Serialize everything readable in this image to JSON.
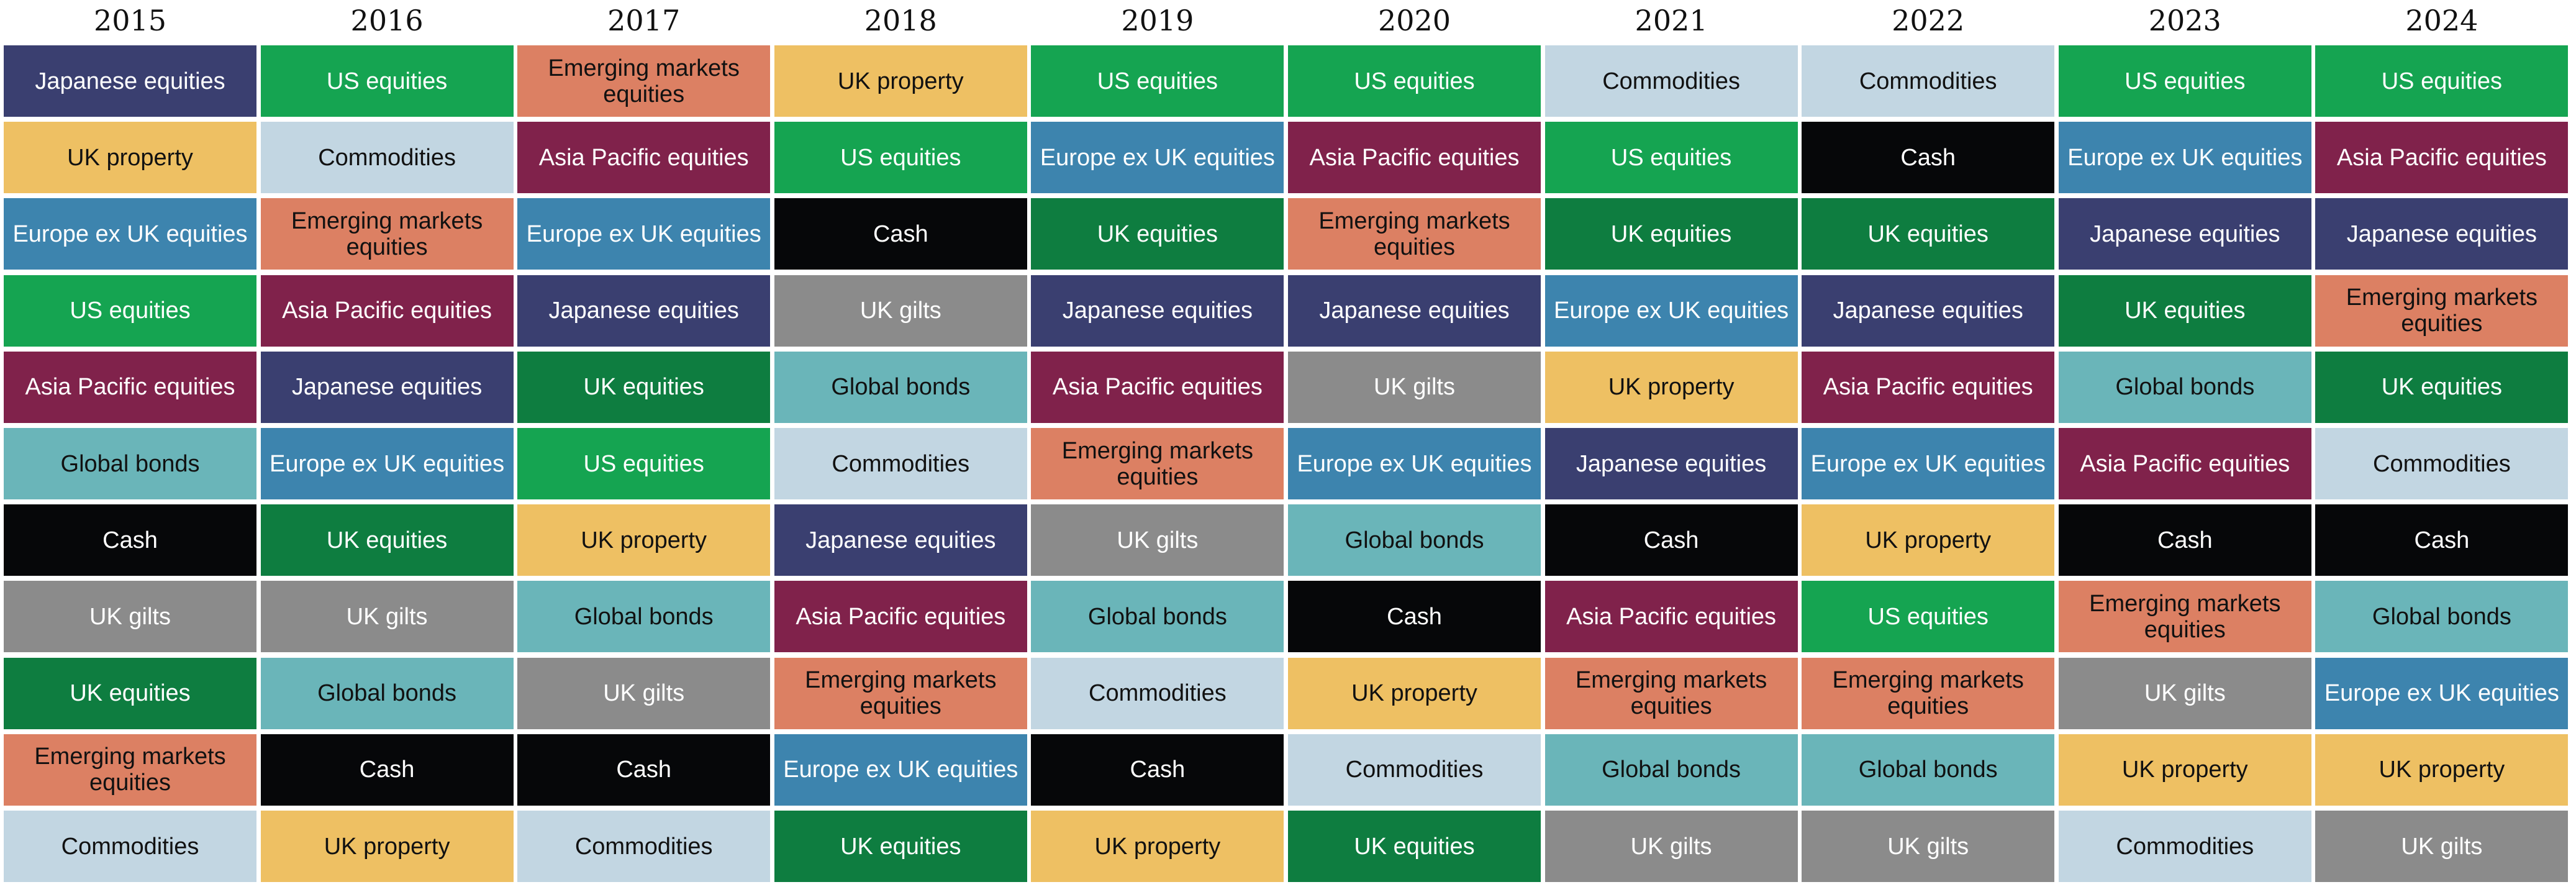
{
  "chart_data": {
    "type": "table",
    "title": "",
    "columns": [
      "2015",
      "2016",
      "2017",
      "2018",
      "2019",
      "2020",
      "2021",
      "2022",
      "2023",
      "2024"
    ],
    "rankings": [
      [
        "Japanese equities",
        "UK property",
        "Europe ex UK equities",
        "US equities",
        "Asia Pacific equities",
        "Global bonds",
        "Cash",
        "UK gilts",
        "UK equities",
        "Emerging markets equities",
        "Commodities"
      ],
      [
        "US equities",
        "Commodities",
        "Emerging markets equities",
        "Asia Pacific equities",
        "Japanese equities",
        "Europe ex UK equities",
        "UK equities",
        "UK gilts",
        "Global bonds",
        "Cash",
        "UK property"
      ],
      [
        "Emerging markets equities",
        "Asia Pacific equities",
        "Europe ex UK equities",
        "Japanese equities",
        "UK equities",
        "US equities",
        "UK property",
        "Global bonds",
        "UK gilts",
        "Cash",
        "Commodities"
      ],
      [
        "UK property",
        "US equities",
        "Cash",
        "UK gilts",
        "Global bonds",
        "Commodities",
        "Japanese equities",
        "Asia Pacific equities",
        "Emerging markets equities",
        "Europe ex UK equities",
        "UK equities"
      ],
      [
        "US equities",
        "Europe ex UK equities",
        "UK equities",
        "Japanese equities",
        "Asia Pacific equities",
        "Emerging markets equities",
        "UK gilts",
        "Global bonds",
        "Commodities",
        "Cash",
        "UK property"
      ],
      [
        "US equities",
        "Asia Pacific equities",
        "Emerging markets equities",
        "Japanese equities",
        "UK gilts",
        "Europe ex UK equities",
        "Global bonds",
        "Cash",
        "UK property",
        "Commodities",
        "UK equities"
      ],
      [
        "Commodities",
        "US equities",
        "UK equities",
        "Europe ex UK equities",
        "UK property",
        "Japanese equities",
        "Cash",
        "Asia Pacific equities",
        "Emerging markets equities",
        "Global bonds",
        "UK gilts"
      ],
      [
        "Commodities",
        "Cash",
        "UK equities",
        "Japanese equities",
        "Asia Pacific equities",
        "Europe ex UK equities",
        "UK property",
        "US equities",
        "Emerging markets equities",
        "Global bonds",
        "UK gilts"
      ],
      [
        "US equities",
        "Europe ex UK equities",
        "Japanese equities",
        "UK equities",
        "Global bonds",
        "Asia Pacific equities",
        "Cash",
        "Emerging markets equities",
        "UK gilts",
        "UK property",
        "Commodities"
      ],
      [
        "US equities",
        "Asia Pacific equities",
        "Japanese equities",
        "Emerging markets equities",
        "UK equities",
        "Commodities",
        "Cash",
        "Global bonds",
        "Europe ex UK equities",
        "UK property",
        "UK gilts"
      ]
    ]
  },
  "asset_classes": [
    {
      "name": "Japanese equities",
      "color": "#3a3f70",
      "text_color": "#ffffff"
    },
    {
      "name": "UK property",
      "color": "#eec063",
      "text_color": "#111111"
    },
    {
      "name": "Europe ex UK equities",
      "color": "#3d84ae",
      "text_color": "#ffffff"
    },
    {
      "name": "US equities",
      "color": "#15a451",
      "text_color": "#ffffff"
    },
    {
      "name": "Asia Pacific equities",
      "color": "#80224b",
      "text_color": "#ffffff"
    },
    {
      "name": "Global bonds",
      "color": "#6ab5b9",
      "text_color": "#111111"
    },
    {
      "name": "Cash",
      "color": "#060709",
      "text_color": "#ffffff"
    },
    {
      "name": "UK gilts",
      "color": "#8b8b8b",
      "text_color": "#ffffff"
    },
    {
      "name": "UK equities",
      "color": "#0e7d40",
      "text_color": "#ffffff"
    },
    {
      "name": "Emerging markets equities",
      "color": "#dc8063",
      "text_color": "#111111"
    },
    {
      "name": "Commodities",
      "color": "#c2d6e2",
      "text_color": "#111111"
    }
  ]
}
